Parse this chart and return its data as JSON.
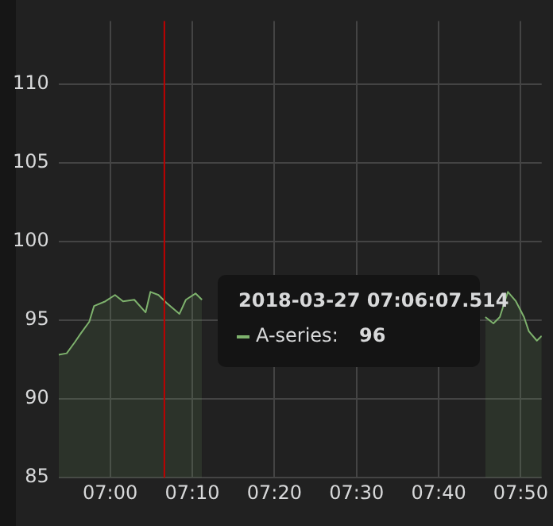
{
  "chart_data": {
    "type": "area",
    "x": [
      6.8954,
      6.9118,
      6.9281,
      6.9412,
      6.9575,
      6.9673,
      6.9902,
      7.0098,
      7.0261,
      7.049,
      7.0719,
      7.0817,
      7.098,
      7.1144,
      7.1405,
      7.1536,
      7.1732,
      7.1863,
      7.4575,
      7.7288,
      7.7451,
      7.7614,
      7.7778,
      7.7908,
      7.8072,
      7.8235,
      7.8399,
      7.8497,
      7.866,
      7.8758
    ],
    "series": [
      {
        "name": "A-series:",
        "color": "#7eb26d",
        "values": [
          92.8,
          92.9,
          93.6,
          94.2,
          94.9,
          95.9,
          96.2,
          96.6,
          96.2,
          96.3,
          95.5,
          96.8,
          96.6,
          96.1,
          95.4,
          96.3,
          96.7,
          96.3,
          null,
          null,
          null,
          95.2,
          94.8,
          95.2,
          96.8,
          96.2,
          95.2,
          94.3,
          93.7,
          94.0
        ]
      }
    ],
    "xlim": [
      6.8954,
      7.8758
    ],
    "xticks": [
      {
        "value": 7,
        "label": "07:00"
      },
      {
        "value": 7.1667,
        "label": "07:10"
      },
      {
        "value": 7.3333,
        "label": "07:20"
      },
      {
        "value": 7.5,
        "label": "07:30"
      },
      {
        "value": 7.6667,
        "label": "07:40"
      },
      {
        "value": 7.8333,
        "label": "07:50"
      }
    ],
    "ylim": [
      85,
      114
    ],
    "yticks": [
      85,
      90,
      95,
      100,
      105,
      110
    ],
    "ref_lines": [
      {
        "axis": "x",
        "value": 7.11,
        "color": "#c00000"
      }
    ],
    "annotations": [
      "2018-03-27 07:06:07.514",
      "96"
    ],
    "grid": true,
    "legend": "center"
  }
}
